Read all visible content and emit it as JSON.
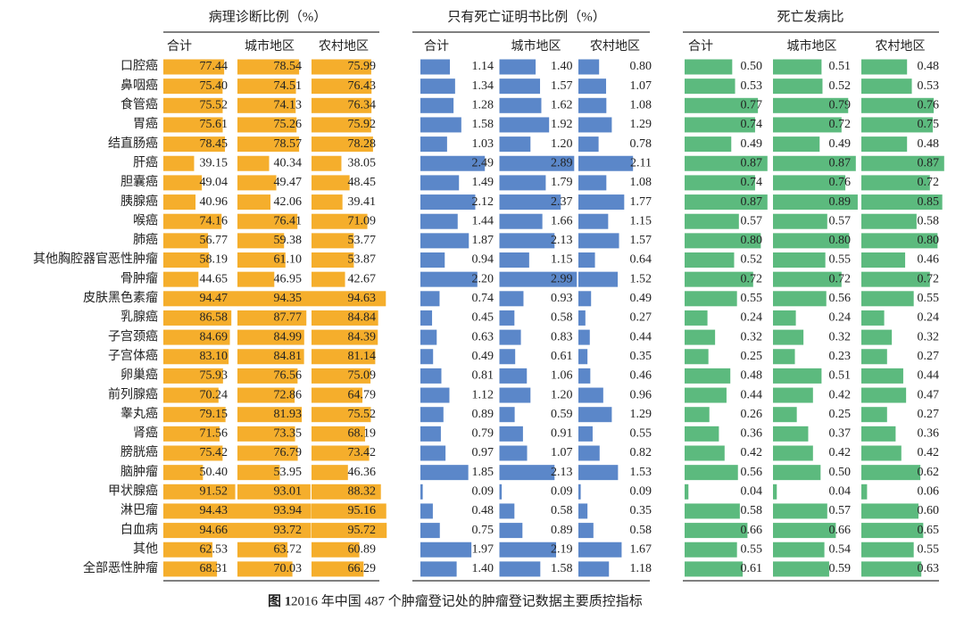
{
  "chart_data": {
    "type": "bar",
    "categories": [
      "口腔癌",
      "鼻咽癌",
      "食管癌",
      "胃癌",
      "结直肠癌",
      "肝癌",
      "胆囊癌",
      "胰腺癌",
      "喉癌",
      "肺癌",
      "其他胸腔器官恶性肿瘤",
      "骨肿瘤",
      "皮肤黑色素瘤",
      "乳腺癌",
      "子宫颈癌",
      "子宫体癌",
      "卵巢癌",
      "前列腺癌",
      "睾丸癌",
      "肾癌",
      "膀胱癌",
      "脑肿瘤",
      "甲状腺癌",
      "淋巴瘤",
      "白血病",
      "其他",
      "全部恶性肿瘤"
    ],
    "caption_label": "图 1",
    "caption": "2016 年中国 487 个肿瘤登记处的肿瘤登记数据主要质控指标",
    "panels": [
      {
        "title": "病理诊断比例（%）",
        "xlim": [
          0,
          100
        ],
        "series": [
          {
            "name": "合计",
            "color": "#f5ae2c",
            "values": [
              77.44,
              75.4,
              75.52,
              75.61,
              78.45,
              39.15,
              49.04,
              40.96,
              74.16,
              56.77,
              58.19,
              44.65,
              94.47,
              86.58,
              84.69,
              83.1,
              75.93,
              70.24,
              79.15,
              71.56,
              75.42,
              50.4,
              91.52,
              94.43,
              94.66,
              62.53,
              68.31
            ],
            "value_labels": [
              "77.44",
              "75.40",
              "75.52",
              "75.61",
              "78.45",
              "39.15",
              "49.04",
              "40.96",
              "74.16",
              "56.77",
              "58.19",
              "44.65",
              "94.47",
              "86.58",
              "84.69",
              "83.10",
              "75.93",
              "70.24",
              "79.15",
              "71.56",
              "75.42",
              "50.40",
              "91.52",
              "94.43",
              "94.66",
              "62.53",
              "68.31"
            ]
          },
          {
            "name": "城市地区",
            "color": "#f5ae2c",
            "values": [
              78.54,
              74.51,
              74.13,
              75.26,
              78.57,
              40.34,
              49.47,
              42.06,
              76.41,
              59.38,
              61.1,
              46.95,
              94.35,
              87.77,
              84.99,
              84.81,
              76.56,
              72.86,
              81.93,
              73.35,
              76.79,
              53.95,
              93.01,
              93.94,
              93.72,
              63.72,
              70.03
            ],
            "value_labels": [
              "78.54",
              "74.51",
              "74.13",
              "75.26",
              "78.57",
              "40.34",
              "49.47",
              "42.06",
              "76.41",
              "59.38",
              "61.10",
              "46.95",
              "94.35",
              "87.77",
              "84.99",
              "84.81",
              "76.56",
              "72.86",
              "81.93",
              "73.35",
              "76.79",
              "53.95",
              "93.01",
              "93.94",
              "93.72",
              "63.72",
              "70.03"
            ]
          },
          {
            "name": "农村地区",
            "color": "#f5ae2c",
            "values": [
              75.99,
              76.43,
              76.34,
              75.92,
              78.28,
              38.05,
              48.45,
              39.41,
              71.09,
              53.77,
              53.87,
              42.67,
              94.63,
              84.84,
              84.39,
              81.14,
              75.09,
              64.79,
              75.52,
              68.19,
              73.42,
              46.36,
              88.32,
              95.16,
              95.72,
              60.89,
              66.29
            ],
            "value_labels": [
              "75.99",
              "76.43",
              "76.34",
              "75.92",
              "78.28",
              "38.05",
              "48.45",
              "39.41",
              "71.09",
              "53.77",
              "53.87",
              "42.67",
              "94.63",
              "84.84",
              "84.39",
              "81.14",
              "75.09",
              "64.79",
              "75.52",
              "68.19",
              "73.42",
              "46.36",
              "88.32",
              "95.16",
              "95.72",
              "60.89",
              "66.29"
            ]
          }
        ]
      },
      {
        "title": "只有死亡证明书比例（%）",
        "xlim": [
          0,
          3
        ],
        "series": [
          {
            "name": "合计",
            "color": "#5b87c9",
            "values": [
              1.14,
              1.34,
              1.28,
              1.58,
              1.03,
              2.49,
              1.49,
              2.12,
              1.44,
              1.87,
              0.94,
              2.2,
              0.74,
              0.45,
              0.63,
              0.49,
              0.81,
              1.12,
              0.89,
              0.79,
              0.97,
              1.85,
              0.09,
              0.48,
              0.75,
              1.97,
              1.4
            ],
            "value_labels": [
              "1.14",
              "1.34",
              "1.28",
              "1.58",
              "1.03",
              "2.49",
              "1.49",
              "2.12",
              "1.44",
              "1.87",
              "0.94",
              "2.20",
              "0.74",
              "0.45",
              "0.63",
              "0.49",
              "0.81",
              "1.12",
              "0.89",
              "0.79",
              "0.97",
              "1.85",
              "0.09",
              "0.48",
              "0.75",
              "1.97",
              "1.40"
            ]
          },
          {
            "name": "城市地区",
            "color": "#5b87c9",
            "values": [
              1.4,
              1.57,
              1.62,
              1.92,
              1.2,
              2.89,
              1.79,
              2.37,
              1.66,
              2.13,
              1.15,
              2.99,
              0.93,
              0.58,
              0.83,
              0.61,
              1.06,
              1.2,
              0.59,
              0.91,
              1.07,
              2.13,
              0.09,
              0.58,
              0.89,
              2.19,
              1.58
            ],
            "value_labels": [
              "1.40",
              "1.57",
              "1.62",
              "1.92",
              "1.20",
              "2.89",
              "1.79",
              "2.37",
              "1.66",
              "2.13",
              "1.15",
              "2.99",
              "0.93",
              "0.58",
              "0.83",
              "0.61",
              "1.06",
              "1.20",
              "0.59",
              "0.91",
              "1.07",
              "2.13",
              "0.09",
              "0.58",
              "0.89",
              "2.19",
              "1.58"
            ]
          },
          {
            "name": "农村地区",
            "color": "#5b87c9",
            "values": [
              0.8,
              1.07,
              1.08,
              1.29,
              0.78,
              2.11,
              1.08,
              1.77,
              1.15,
              1.57,
              0.64,
              1.52,
              0.49,
              0.27,
              0.44,
              0.35,
              0.46,
              0.96,
              1.29,
              0.55,
              0.82,
              1.53,
              0.09,
              0.35,
              0.58,
              1.67,
              1.18
            ],
            "value_labels": [
              "0.80",
              "1.07",
              "1.08",
              "1.29",
              "0.78",
              "2.11",
              "1.08",
              "1.77",
              "1.15",
              "1.57",
              "0.64",
              "1.52",
              "0.49",
              "0.27",
              "0.44",
              "0.35",
              "0.46",
              "0.96",
              "1.29",
              "0.55",
              "0.82",
              "1.53",
              "0.09",
              "0.35",
              "0.58",
              "1.67",
              "1.18"
            ]
          }
        ]
      },
      {
        "title": "死亡发病比",
        "xlim": [
          0,
          0.9
        ],
        "series": [
          {
            "name": "合计",
            "color": "#5cba7e",
            "values": [
              0.5,
              0.53,
              0.77,
              0.74,
              0.49,
              0.87,
              0.74,
              0.87,
              0.57,
              0.8,
              0.52,
              0.72,
              0.55,
              0.24,
              0.32,
              0.25,
              0.48,
              0.44,
              0.26,
              0.36,
              0.42,
              0.56,
              0.04,
              0.58,
              0.66,
              0.55,
              0.61
            ],
            "value_labels": [
              "0.50",
              "0.53",
              "0.77",
              "0.74",
              "0.49",
              "0.87",
              "0.74",
              "0.87",
              "0.57",
              "0.80",
              "0.52",
              "0.72",
              "0.55",
              "0.24",
              "0.32",
              "0.25",
              "0.48",
              "0.44",
              "0.26",
              "0.36",
              "0.42",
              "0.56",
              "0.04",
              "0.58",
              "0.66",
              "0.55",
              "0.61"
            ]
          },
          {
            "name": "城市地区",
            "color": "#5cba7e",
            "values": [
              0.51,
              0.52,
              0.79,
              0.72,
              0.49,
              0.87,
              0.76,
              0.89,
              0.57,
              0.8,
              0.55,
              0.72,
              0.56,
              0.24,
              0.32,
              0.23,
              0.51,
              0.42,
              0.25,
              0.37,
              0.42,
              0.5,
              0.04,
              0.57,
              0.66,
              0.54,
              0.59
            ],
            "value_labels": [
              "0.51",
              "0.52",
              "0.79",
              "0.72",
              "0.49",
              "0.87",
              "0.76",
              "0.89",
              "0.57",
              "0.80",
              "0.55",
              "0.72",
              "0.56",
              "0.24",
              "0.32",
              "0.23",
              "0.51",
              "0.42",
              "0.25",
              "0.37",
              "0.42",
              "0.50",
              "0.04",
              "0.57",
              "0.66",
              "0.54",
              "0.59"
            ]
          },
          {
            "name": "农村地区",
            "color": "#5cba7e",
            "values": [
              0.48,
              0.53,
              0.76,
              0.75,
              0.48,
              0.87,
              0.72,
              0.85,
              0.58,
              0.8,
              0.46,
              0.72,
              0.55,
              0.24,
              0.32,
              0.27,
              0.44,
              0.47,
              0.27,
              0.36,
              0.42,
              0.62,
              0.06,
              0.6,
              0.65,
              0.55,
              0.63
            ],
            "value_labels": [
              "0.48",
              "0.53",
              "0.76",
              "0.75",
              "0.48",
              "0.87",
              "0.72",
              "0.85",
              "0.58",
              "0.80",
              "0.46",
              "0.72",
              "0.55",
              "0.24",
              "0.32",
              "0.27",
              "0.44",
              "0.47",
              "0.27",
              "0.36",
              "0.42",
              "0.62",
              "0.06",
              "0.60",
              "0.65",
              "0.55",
              "0.63"
            ]
          }
        ]
      }
    ]
  }
}
